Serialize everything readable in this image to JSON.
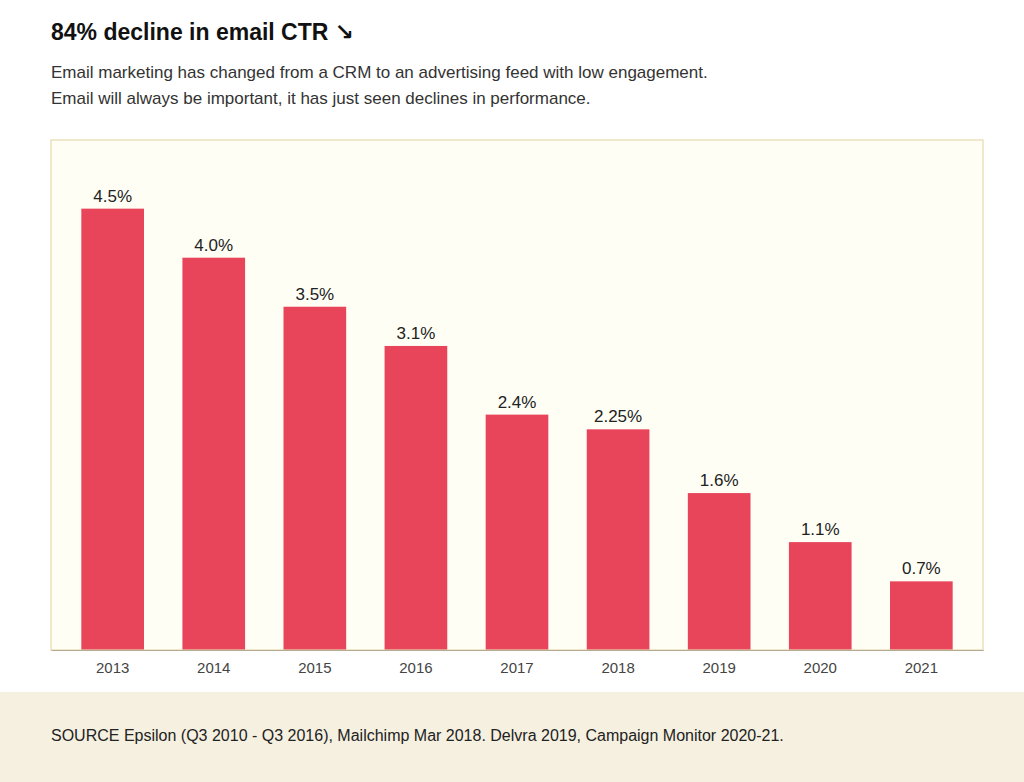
{
  "chart_data": {
    "type": "bar",
    "title": "84% decline in email CTR ↘",
    "subtitle": [
      "Email marketing has changed from a CRM to an advertising feed with low engagement.",
      "Email will always be important, it has just seen declines in performance."
    ],
    "source": "SOURCE Epsilon (Q3 2010 - Q3 2016), Mailchimp Mar 2018. Delvra 2019, Campaign Monitor 2020-21.",
    "categories": [
      "2013",
      "2014",
      "2015",
      "2016",
      "2017",
      "2018",
      "2019",
      "2020",
      "2021"
    ],
    "values": [
      4.5,
      4.0,
      3.5,
      3.1,
      2.4,
      2.25,
      1.6,
      1.1,
      0.7
    ],
    "value_labels": [
      "4.5%",
      "4.0%",
      "3.5%",
      "3.1%",
      "2.4%",
      "2.25%",
      "1.6%",
      "1.1%",
      "0.7%"
    ],
    "data_labels": true,
    "color": "#e8445a",
    "ylim": [
      0,
      5.2
    ],
    "grid": false,
    "tick_labels": "x"
  }
}
